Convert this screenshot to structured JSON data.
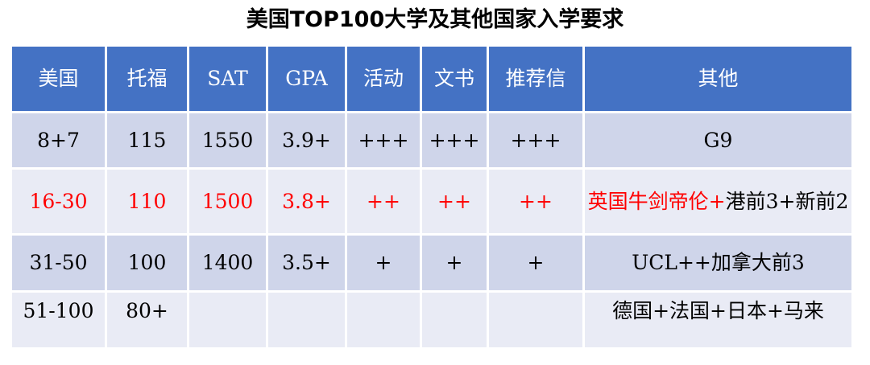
{
  "title": "美国TOP100大学及其他国家入学要求",
  "headers": [
    "美国",
    "托福",
    "SAT",
    "GPA",
    "活动",
    "文书",
    "推荐信",
    "其他"
  ],
  "rows": [
    {
      "cells": [
        "8+7",
        "115",
        "1550",
        "3.9+",
        "+++",
        "+++",
        "+++"
      ],
      "other": [
        {
          "text": "G9"
        }
      ]
    },
    {
      "highlight": "#FF0000",
      "cells": [
        "16-30",
        "110",
        "1500",
        "3.8+",
        "++",
        "++",
        "++"
      ],
      "other": [
        {
          "text": "英国牛剑帝伦+",
          "red": true
        },
        {
          "text": "港前3+新前2"
        }
      ]
    },
    {
      "cells": [
        "31-50",
        "100",
        "1400",
        "3.5+",
        "+",
        "+",
        "+"
      ],
      "other": [
        {
          "text": "UCL++加拿大前3"
        }
      ]
    },
    {
      "cells": [
        "51-100",
        "80+",
        "",
        "",
        "",
        "",
        ""
      ],
      "other": [
        {
          "text": "德国+法国+日本+马来"
        }
      ]
    }
  ],
  "colors": {
    "header": "#4472C4",
    "row_dark": "#CFD5EA",
    "row_light": "#E9EBF5",
    "highlight": "#FF0000"
  }
}
